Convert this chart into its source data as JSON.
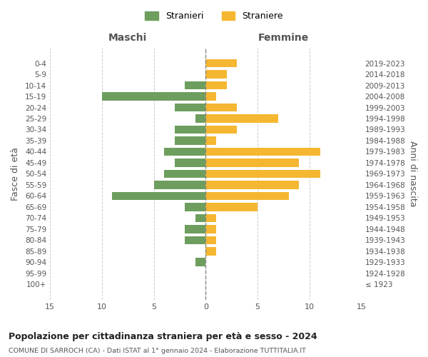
{
  "age_groups": [
    "100+",
    "95-99",
    "90-94",
    "85-89",
    "80-84",
    "75-79",
    "70-74",
    "65-69",
    "60-64",
    "55-59",
    "50-54",
    "45-49",
    "40-44",
    "35-39",
    "30-34",
    "25-29",
    "20-24",
    "15-19",
    "10-14",
    "5-9",
    "0-4"
  ],
  "birth_years": [
    "≤ 1923",
    "1924-1928",
    "1929-1933",
    "1934-1938",
    "1939-1943",
    "1944-1948",
    "1949-1953",
    "1954-1958",
    "1959-1963",
    "1964-1968",
    "1969-1973",
    "1974-1978",
    "1979-1983",
    "1984-1988",
    "1989-1993",
    "1994-1998",
    "1999-2003",
    "2004-2008",
    "2009-2013",
    "2014-2018",
    "2019-2023"
  ],
  "males": [
    0,
    0,
    1,
    0,
    2,
    2,
    1,
    2,
    9,
    5,
    4,
    3,
    4,
    3,
    3,
    1,
    3,
    10,
    2,
    0,
    0
  ],
  "females": [
    0,
    0,
    0,
    1,
    1,
    1,
    1,
    5,
    8,
    9,
    11,
    9,
    11,
    1,
    3,
    7,
    3,
    1,
    2,
    2,
    3
  ],
  "male_color": "#6d9e5e",
  "female_color": "#f5b731",
  "title": "Popolazione per cittadinanza straniera per età e sesso - 2024",
  "subtitle": "COMUNE DI SARROCH (CA) - Dati ISTAT al 1° gennaio 2024 - Elaborazione TUTTITALIA.IT",
  "xlabel_left": "Maschi",
  "xlabel_right": "Femmine",
  "ylabel_left": "Fasce di età",
  "ylabel_right": "Anni di nascita",
  "legend_male": "Stranieri",
  "legend_female": "Straniere",
  "xlim": 15,
  "background_color": "#ffffff",
  "grid_color": "#cccccc"
}
